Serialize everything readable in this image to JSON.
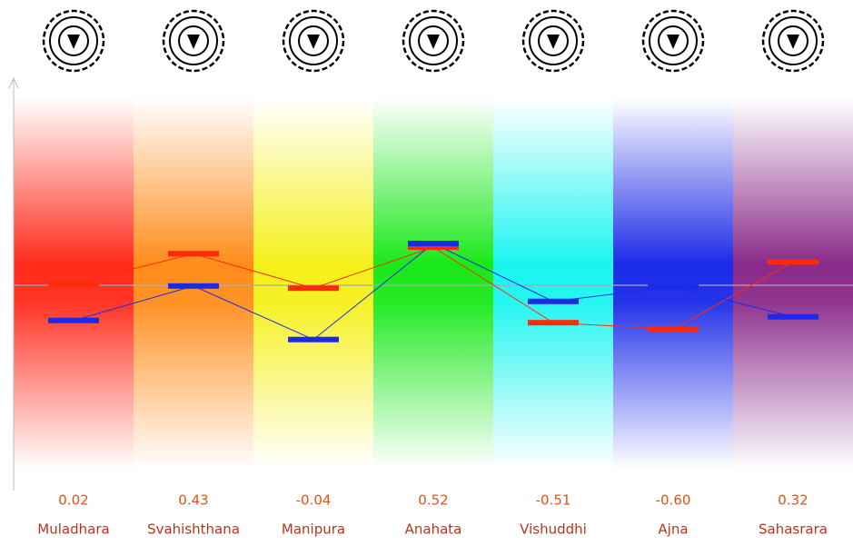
{
  "chart_data": {
    "type": "line",
    "categories": [
      "Muladhara",
      "Svahishthana",
      "Manipura",
      "Anahata",
      "Vishuddhi",
      "Ajna",
      "Sahasrara"
    ],
    "band_colors": [
      "#ff2a1a",
      "#ff8c1a",
      "#f5f01a",
      "#1ae81a",
      "#1af5f0",
      "#1a2ae8",
      "#8a2a8a"
    ],
    "ylim": [
      -2.8,
      2.8
    ],
    "series": [
      {
        "color": "#ff2a0a",
        "values": [
          0.02,
          0.43,
          -0.04,
          0.52,
          -0.51,
          -0.6,
          0.32
        ],
        "value_labels": [
          "0.02",
          "0.43",
          "-0.04",
          "0.52",
          "-0.51",
          "-0.60",
          "0.32"
        ]
      },
      {
        "color": "#1a2ae8",
        "values": [
          -0.48,
          -0.01,
          -0.74,
          0.57,
          -0.22,
          -0.02,
          -0.43
        ]
      }
    ]
  }
}
